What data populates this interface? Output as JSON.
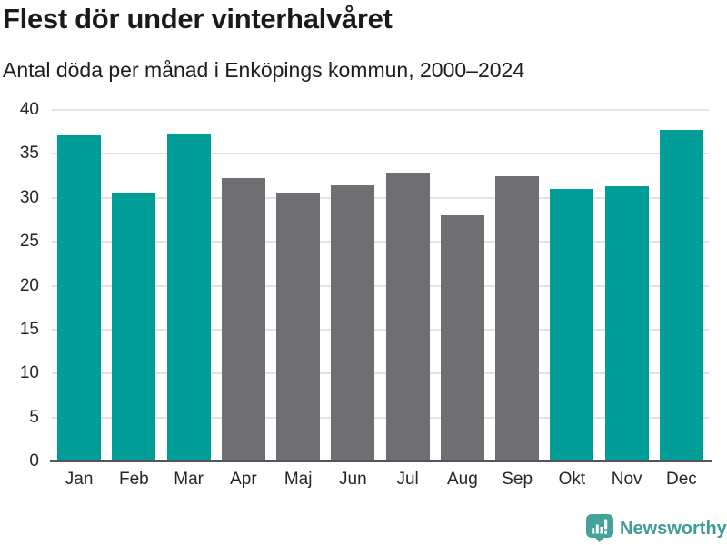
{
  "header": {
    "title": "Flest dör under vinterhalvåret",
    "subtitle": "Antal döda per månad i Enköpings kommun, 2000–2024"
  },
  "chart_data": {
    "type": "bar",
    "title": "Flest dör under vinterhalvåret",
    "subtitle": "Antal döda per månad i Enköpings kommun, 2000–2024",
    "categories": [
      "Jan",
      "Feb",
      "Mar",
      "Apr",
      "Maj",
      "Jun",
      "Jul",
      "Aug",
      "Sep",
      "Okt",
      "Nov",
      "Dec"
    ],
    "values": [
      37.1,
      30.5,
      37.3,
      32.2,
      30.6,
      31.4,
      32.9,
      28.0,
      32.5,
      31.0,
      31.3,
      37.7
    ],
    "bar_colors": [
      "#009e97",
      "#009e97",
      "#009e97",
      "#6e6e73",
      "#6e6e73",
      "#6e6e73",
      "#6e6e73",
      "#6e6e73",
      "#6e6e73",
      "#009e97",
      "#009e97",
      "#009e97"
    ],
    "highlighted_months": [
      "Jan",
      "Feb",
      "Mar",
      "Okt",
      "Nov",
      "Dec"
    ],
    "xlabel": "",
    "ylabel": "",
    "ylim": [
      0,
      40
    ],
    "yticks": [
      0,
      5,
      10,
      15,
      20,
      25,
      30,
      35,
      40
    ],
    "grid": true,
    "legend_position": "none"
  },
  "footer": {
    "brand": "Newsworthy",
    "logo_icon": "newsworthy-speech-bubble-bar-chart-icon"
  },
  "colors": {
    "highlight": "#009e97",
    "neutral": "#6e6e73",
    "gridline": "#e2e2e2",
    "axis_line": "#54555a",
    "title_text": "#1a1a1a",
    "tick_text": "#262626",
    "brand": "#3f9c96"
  }
}
